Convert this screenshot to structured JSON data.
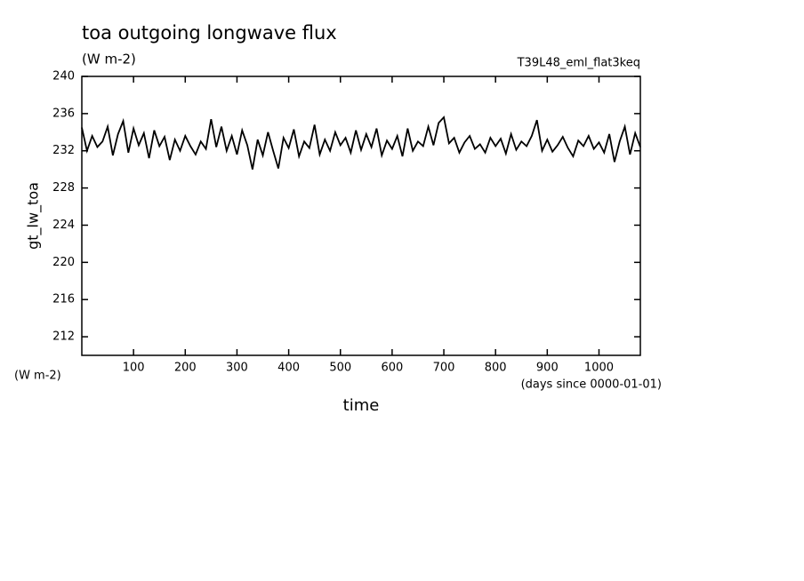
{
  "chart_data": {
    "type": "line",
    "title": "toa outgoing longwave flux",
    "subtitle": "(W m-2)",
    "run_label": "T39L48_eml_flat3keq",
    "y_label": "gt_lw_toa",
    "y_unit": "(W m-2)",
    "x_unit": "(days since 0000-01-01)",
    "x_label": "time",
    "xlim": [
      0,
      1080
    ],
    "xticks": [
      100,
      200,
      300,
      400,
      500,
      600,
      700,
      800,
      900,
      1000
    ],
    "ylim": [
      210,
      240
    ],
    "yticks": [
      212,
      216,
      220,
      224,
      228,
      232,
      236,
      240
    ],
    "x": [
      0,
      10,
      20,
      30,
      40,
      50,
      60,
      70,
      80,
      90,
      100,
      110,
      120,
      130,
      140,
      150,
      160,
      170,
      180,
      190,
      200,
      210,
      220,
      230,
      240,
      250,
      260,
      270,
      280,
      290,
      300,
      310,
      320,
      330,
      340,
      350,
      360,
      370,
      380,
      390,
      400,
      410,
      420,
      430,
      440,
      450,
      460,
      470,
      480,
      490,
      500,
      510,
      520,
      530,
      540,
      550,
      560,
      570,
      580,
      590,
      600,
      610,
      620,
      630,
      640,
      650,
      660,
      670,
      680,
      690,
      700,
      710,
      720,
      730,
      740,
      750,
      760,
      770,
      780,
      790,
      800,
      810,
      820,
      830,
      840,
      850,
      860,
      870,
      880,
      890,
      900,
      910,
      920,
      930,
      940,
      950,
      960,
      970,
      980,
      990,
      1000,
      1010,
      1020,
      1030,
      1040,
      1050,
      1060,
      1070,
      1080
    ],
    "series": [
      {
        "name": "gt_lw_toa",
        "color": "#000000",
        "values": [
          234.5,
          232.0,
          233.6,
          232.4,
          233.0,
          234.6,
          231.5,
          233.8,
          235.2,
          231.8,
          234.4,
          232.6,
          233.9,
          231.2,
          234.2,
          232.5,
          233.5,
          231.0,
          233.2,
          232.0,
          233.6,
          232.5,
          231.6,
          233.0,
          232.2,
          235.4,
          232.4,
          234.6,
          232.0,
          233.6,
          231.6,
          234.2,
          232.6,
          230.0,
          233.2,
          231.5,
          234.0,
          232.0,
          230.1,
          233.4,
          232.3,
          234.3,
          231.4,
          233.0,
          232.3,
          234.8,
          231.6,
          233.2,
          232.0,
          234.0,
          232.6,
          233.4,
          231.8,
          234.2,
          232.1,
          233.8,
          232.4,
          234.4,
          231.5,
          233.1,
          232.2,
          233.6,
          231.4,
          234.4,
          232.0,
          233.0,
          232.5,
          234.6,
          232.6,
          235.0,
          235.6,
          232.8,
          233.4,
          231.8,
          232.9,
          233.6,
          232.2,
          232.7,
          231.8,
          233.4,
          232.5,
          233.3,
          231.7,
          233.8,
          232.1,
          233.0,
          232.5,
          233.6,
          235.3,
          232.0,
          233.2,
          231.9,
          232.6,
          233.5,
          232.3,
          231.4,
          233.1,
          232.5,
          233.6,
          232.2,
          232.9,
          231.8,
          233.8,
          230.8,
          233.0,
          234.6,
          231.6,
          233.9,
          232.4
        ]
      }
    ]
  }
}
